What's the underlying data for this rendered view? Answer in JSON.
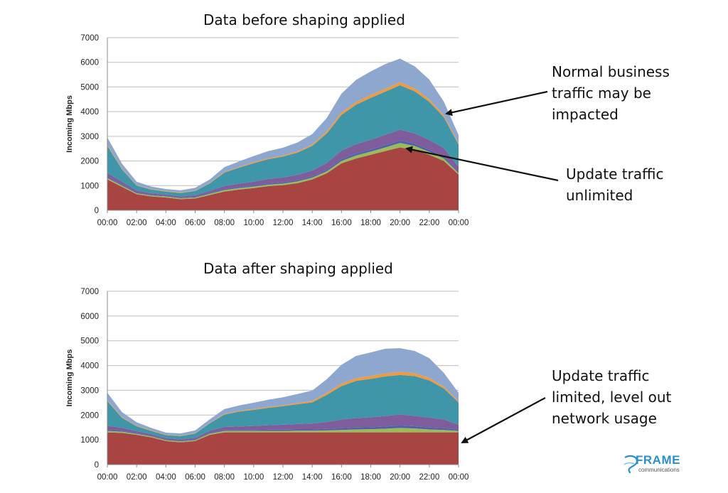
{
  "colors": {
    "update": "#a84442",
    "layer2": "#9bbb59",
    "layer3": "#4f61a8",
    "layer4": "#7f5c9b",
    "layer5": "#3f96a8",
    "layer6": "#f1993f",
    "layer7": "#8ea7cf"
  },
  "annotations": {
    "business": [
      "Normal business",
      "traffic may be",
      "impacted"
    ],
    "unlimited": [
      "Update traffic",
      "unlimited"
    ],
    "limited": [
      "Update traffic",
      "limited, level out",
      "network usage"
    ]
  },
  "logo": {
    "name": "FRAME",
    "sub": "communications",
    "icon": "frame-logo-icon"
  },
  "chart_data": [
    {
      "type": "area",
      "stacked": true,
      "title": "Data before shaping applied",
      "ylabel": "Incoming Mbps",
      "xlabel": "",
      "ylim": [
        0,
        7000
      ],
      "yticks": [
        0,
        1000,
        2000,
        3000,
        4000,
        5000,
        6000,
        7000
      ],
      "grid": true,
      "x": [
        "00:00",
        "01:00",
        "02:00",
        "03:00",
        "04:00",
        "05:00",
        "06:00",
        "07:00",
        "08:00",
        "09:00",
        "10:00",
        "11:00",
        "12:00",
        "13:00",
        "14:00",
        "15:00",
        "16:00",
        "17:00",
        "18:00",
        "19:00",
        "20:00",
        "21:00",
        "22:00",
        "23:00",
        "24:00"
      ],
      "xtick_labels": [
        "00:00",
        "02:00",
        "04:00",
        "06:00",
        "08:00",
        "10:00",
        "12:00",
        "14:00",
        "16:00",
        "18:00",
        "20:00",
        "22:00",
        "00:00"
      ],
      "series": [
        {
          "values": [
            1250,
            950,
            650,
            560,
            520,
            450,
            480,
            620,
            760,
            840,
            900,
            980,
            1020,
            1100,
            1250,
            1500,
            1900,
            2100,
            2250,
            2400,
            2550,
            2450,
            2250,
            2000,
            1450
          ]
        },
        {
          "values": [
            60,
            50,
            40,
            40,
            40,
            40,
            40,
            50,
            60,
            60,
            60,
            60,
            60,
            70,
            70,
            80,
            100,
            120,
            130,
            150,
            180,
            160,
            120,
            100,
            60
          ]
        },
        {
          "values": [
            50,
            40,
            30,
            30,
            30,
            30,
            30,
            40,
            40,
            40,
            40,
            50,
            50,
            50,
            50,
            60,
            70,
            80,
            80,
            90,
            100,
            90,
            80,
            70,
            50
          ]
        },
        {
          "values": [
            150,
            120,
            80,
            60,
            50,
            50,
            60,
            80,
            120,
            140,
            160,
            180,
            200,
            220,
            240,
            280,
            350,
            380,
            400,
            420,
            440,
            420,
            400,
            350,
            200
          ]
        },
        {
          "values": [
            1100,
            500,
            200,
            150,
            120,
            130,
            170,
            300,
            550,
            650,
            750,
            800,
            850,
            900,
            1000,
            1200,
            1450,
            1600,
            1700,
            1750,
            1800,
            1700,
            1550,
            1250,
            900
          ]
        },
        {
          "values": [
            40,
            30,
            20,
            20,
            20,
            20,
            20,
            20,
            30,
            30,
            40,
            40,
            40,
            50,
            60,
            80,
            100,
            110,
            120,
            120,
            130,
            120,
            100,
            80,
            50
          ]
        },
        {
          "values": [
            300,
            200,
            140,
            100,
            80,
            90,
            110,
            140,
            190,
            220,
            250,
            290,
            320,
            360,
            420,
            550,
            760,
            900,
            950,
            1000,
            950,
            900,
            800,
            550,
            340
          ]
        }
      ]
    },
    {
      "type": "area",
      "stacked": true,
      "title": "Data after shaping applied",
      "ylabel": "Incoming Mbps",
      "xlabel": "",
      "ylim": [
        0,
        7000
      ],
      "yticks": [
        0,
        1000,
        2000,
        3000,
        4000,
        5000,
        6000,
        7000
      ],
      "grid": true,
      "x": [
        "00:00",
        "01:00",
        "02:00",
        "03:00",
        "04:00",
        "05:00",
        "06:00",
        "07:00",
        "08:00",
        "09:00",
        "10:00",
        "11:00",
        "12:00",
        "13:00",
        "14:00",
        "15:00",
        "16:00",
        "17:00",
        "18:00",
        "19:00",
        "20:00",
        "21:00",
        "22:00",
        "23:00",
        "24:00"
      ],
      "xtick_labels": [
        "00:00",
        "02:00",
        "04:00",
        "06:00",
        "08:00",
        "10:00",
        "12:00",
        "14:00",
        "16:00",
        "18:00",
        "20:00",
        "22:00",
        "00:00"
      ],
      "series": [
        {
          "values": [
            1300,
            1280,
            1200,
            1100,
            950,
            900,
            950,
            1200,
            1300,
            1300,
            1300,
            1300,
            1300,
            1300,
            1300,
            1300,
            1300,
            1300,
            1300,
            1300,
            1300,
            1300,
            1300,
            1300,
            1300
          ]
        },
        {
          "values": [
            60,
            50,
            40,
            40,
            40,
            40,
            40,
            50,
            60,
            60,
            60,
            60,
            60,
            70,
            70,
            80,
            100,
            120,
            130,
            150,
            180,
            160,
            120,
            100,
            60
          ]
        },
        {
          "values": [
            50,
            40,
            30,
            30,
            30,
            30,
            30,
            40,
            40,
            40,
            40,
            50,
            50,
            50,
            50,
            60,
            70,
            80,
            80,
            90,
            100,
            90,
            80,
            70,
            50
          ]
        },
        {
          "values": [
            150,
            120,
            80,
            60,
            50,
            50,
            60,
            80,
            120,
            140,
            160,
            180,
            200,
            220,
            240,
            280,
            350,
            380,
            400,
            420,
            440,
            420,
            400,
            350,
            200
          ]
        },
        {
          "values": [
            1000,
            400,
            200,
            130,
            120,
            130,
            170,
            300,
            500,
            600,
            650,
            700,
            750,
            800,
            850,
            1100,
            1350,
            1500,
            1550,
            1600,
            1600,
            1600,
            1500,
            1250,
            900
          ]
        },
        {
          "values": [
            40,
            30,
            20,
            20,
            20,
            20,
            20,
            20,
            30,
            30,
            40,
            40,
            40,
            50,
            60,
            80,
            100,
            110,
            120,
            120,
            130,
            120,
            100,
            80,
            50
          ]
        },
        {
          "values": [
            300,
            200,
            140,
            100,
            80,
            90,
            110,
            140,
            190,
            220,
            250,
            290,
            320,
            360,
            420,
            550,
            760,
            900,
            950,
            1000,
            950,
            900,
            800,
            550,
            340
          ]
        }
      ]
    }
  ]
}
